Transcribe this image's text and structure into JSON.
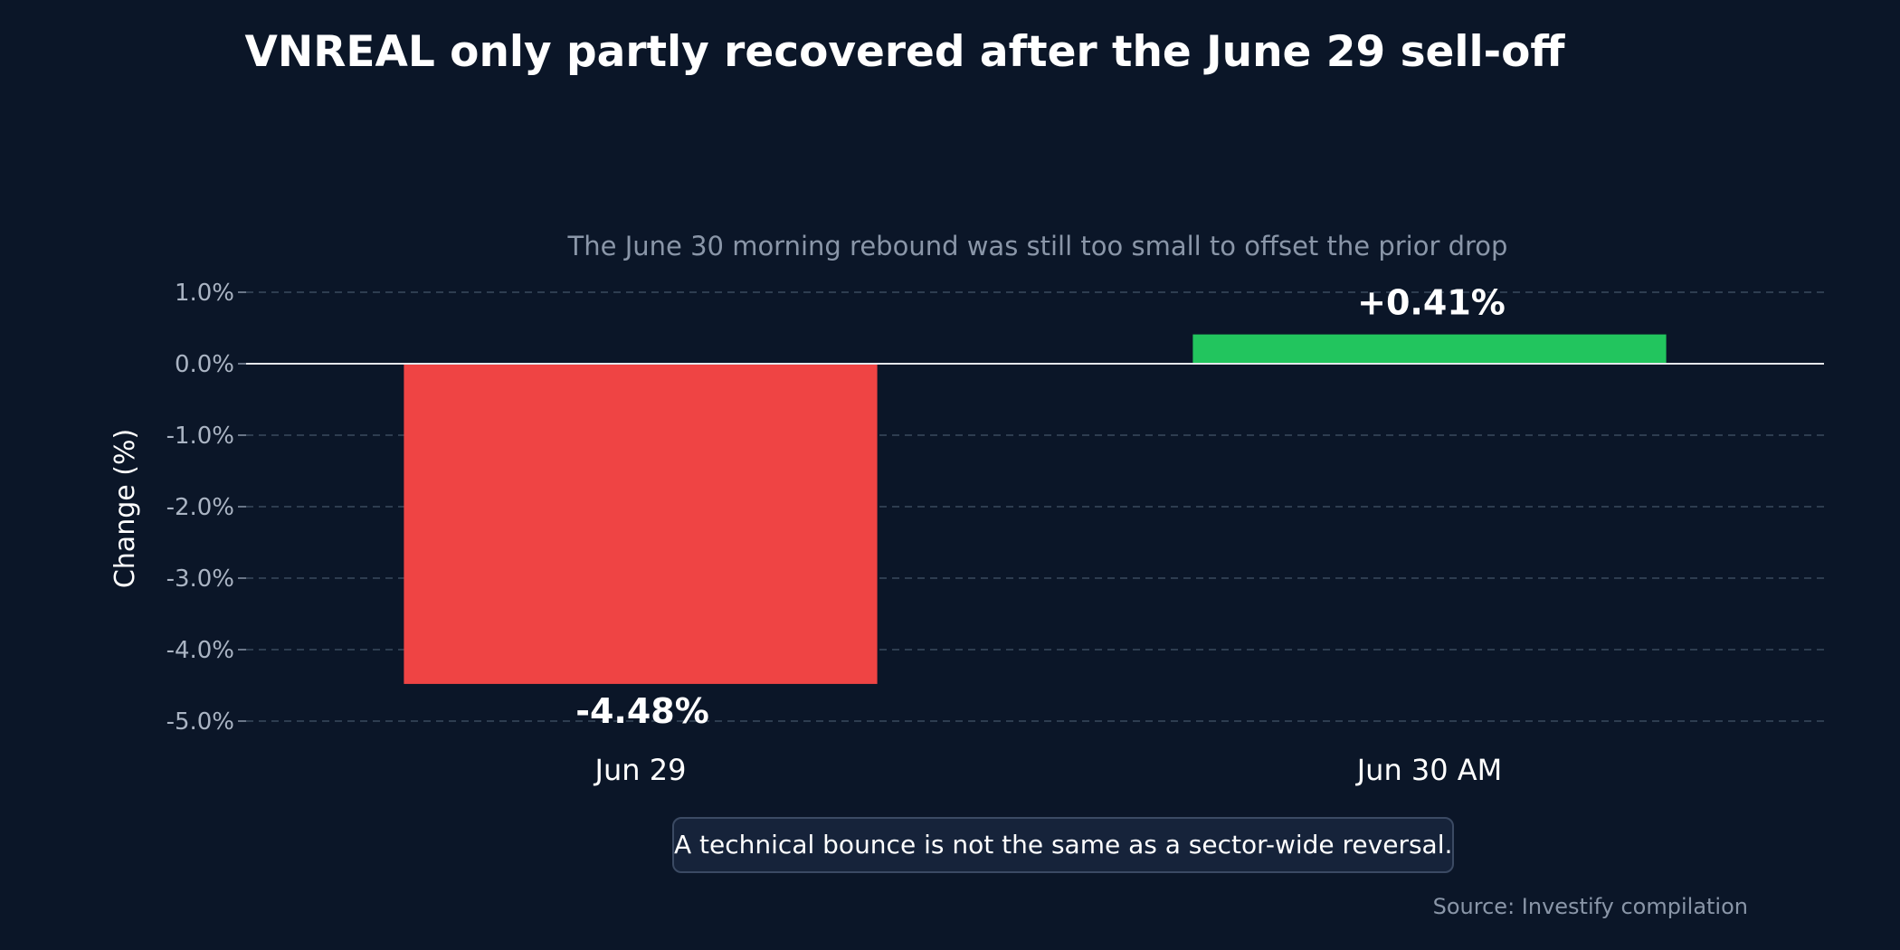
{
  "chart_data": {
    "type": "bar",
    "title": "VNREAL only partly recovered after the June 29 sell-off",
    "subtitle": "The June 30 morning rebound was still too small to offset the prior drop",
    "ylabel": "Change (%)",
    "xlabel": "",
    "categories": [
      "Jun 29",
      "Jun 30 AM"
    ],
    "values": [
      -4.48,
      0.41
    ],
    "data_labels": [
      "-4.48%",
      "+0.41%"
    ],
    "ylim": [
      -5.0,
      1.0
    ],
    "yticks": [
      1.0,
      0.0,
      -1.0,
      -2.0,
      -3.0,
      -4.0,
      -5.0
    ],
    "ytick_labels": [
      "1.0%",
      "0.0%",
      "-1.0%",
      "-2.0%",
      "-3.0%",
      "-4.0%",
      "-5.0%"
    ],
    "grid": true,
    "colors": {
      "negative": "#ef4444",
      "positive": "#22c55e",
      "background": "#0b1628",
      "zero_line": "#e5e7eb",
      "grid": "#3b4a5e"
    },
    "annotation": "A technical bounce is not the same as a sector-wide reversal.",
    "source": "Source: Investify compilation"
  }
}
